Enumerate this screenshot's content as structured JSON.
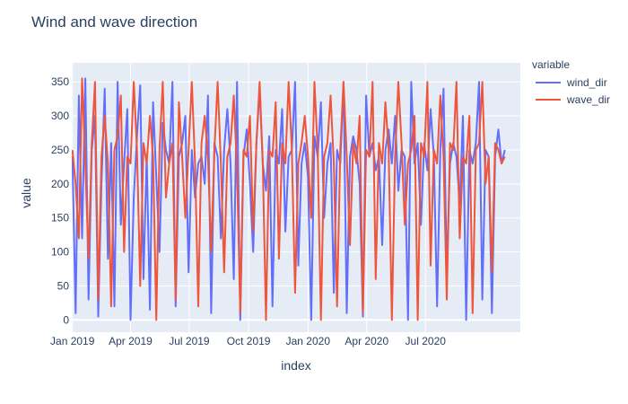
{
  "chart_data": {
    "type": "line",
    "title": "Wind and wave direction",
    "xlabel": "index",
    "ylabel": "value",
    "legend_title": "variable",
    "legend_placement": "right",
    "grid": true,
    "plot_background": "#e5ecf6",
    "x_range": [
      "2018-12-31",
      "2020-11-25"
    ],
    "ylim": [
      -18,
      378
    ],
    "x_ticks": [
      {
        "date": "2019-01-01",
        "label": "Jan 2019"
      },
      {
        "date": "2019-04-01",
        "label": "Apr 2019"
      },
      {
        "date": "2019-07-01",
        "label": "Jul 2019"
      },
      {
        "date": "2019-10-01",
        "label": "Oct 2019"
      },
      {
        "date": "2020-01-01",
        "label": "Jan 2020"
      },
      {
        "date": "2020-04-01",
        "label": "Apr 2020"
      },
      {
        "date": "2020-07-01",
        "label": "Jul 2020"
      }
    ],
    "y_ticks": [
      0,
      50,
      100,
      150,
      200,
      250,
      300,
      350
    ],
    "series": [
      {
        "name": "wind_dir",
        "color": "#636efa",
        "x_start": "2019-01-01",
        "x_step_days": 5,
        "values": [
          240,
          10,
          330,
          120,
          355,
          30,
          250,
          300,
          5,
          200,
          340,
          90,
          260,
          20,
          350,
          140,
          230,
          310,
          0,
          180,
          270,
          345,
          60,
          240,
          15,
          320,
          210,
          100,
          290,
          250,
          230,
          350,
          20,
          240,
          260,
          300,
          70,
          250,
          180,
          230,
          240,
          200,
          330,
          10,
          260,
          240,
          120,
          250,
          310,
          230,
          60,
          350,
          0,
          240,
          280,
          200,
          100,
          260,
          340,
          230,
          190,
          270,
          20,
          250,
          230,
          310,
          130,
          240,
          250,
          350,
          80,
          230,
          260,
          210,
          0,
          270,
          240,
          320,
          150,
          230,
          260,
          40,
          250,
          230,
          350,
          10,
          240,
          270,
          250,
          200,
          5,
          330,
          240,
          260,
          220,
          240,
          110,
          250,
          280,
          230,
          300,
          190,
          250,
          240,
          0,
          350,
          230,
          260,
          140,
          260,
          220,
          310,
          240,
          20,
          250,
          340,
          70,
          230,
          260,
          240,
          170,
          300,
          0,
          250,
          230,
          260,
          350,
          30,
          250,
          240,
          10,
          240,
          280,
          230,
          250
        ]
      },
      {
        "name": "wave_dir",
        "color": "#ef553b",
        "x_start": "2019-01-01",
        "x_step_days": 5,
        "values": [
          250,
          200,
          120,
          355,
          230,
          90,
          260,
          350,
          30,
          240,
          300,
          230,
          20,
          250,
          270,
          330,
          100,
          240,
          230,
          350,
          250,
          50,
          260,
          230,
          300,
          240,
          0,
          250,
          350,
          180,
          230,
          260,
          30,
          320,
          240,
          150,
          250,
          350,
          230,
          20,
          260,
          300,
          240,
          100,
          250,
          350,
          230,
          70,
          240,
          260,
          330,
          220,
          10,
          250,
          240,
          300,
          130,
          260,
          350,
          230,
          0,
          250,
          240,
          320,
          90,
          260,
          230,
          350,
          250,
          40,
          230,
          260,
          300,
          240,
          150,
          350,
          250,
          0,
          240,
          260,
          330,
          230,
          20,
          250,
          350,
          240,
          110,
          260,
          230,
          300,
          10,
          250,
          240,
          350,
          60,
          260,
          230,
          320,
          250,
          0,
          240,
          350,
          260,
          140,
          230,
          250,
          300,
          0,
          260,
          240,
          350,
          80,
          250,
          230,
          330,
          240,
          30,
          260,
          250,
          350,
          120,
          240,
          230,
          300,
          10,
          250,
          260,
          350,
          200,
          240,
          70,
          260,
          250,
          230,
          240
        ]
      }
    ]
  }
}
